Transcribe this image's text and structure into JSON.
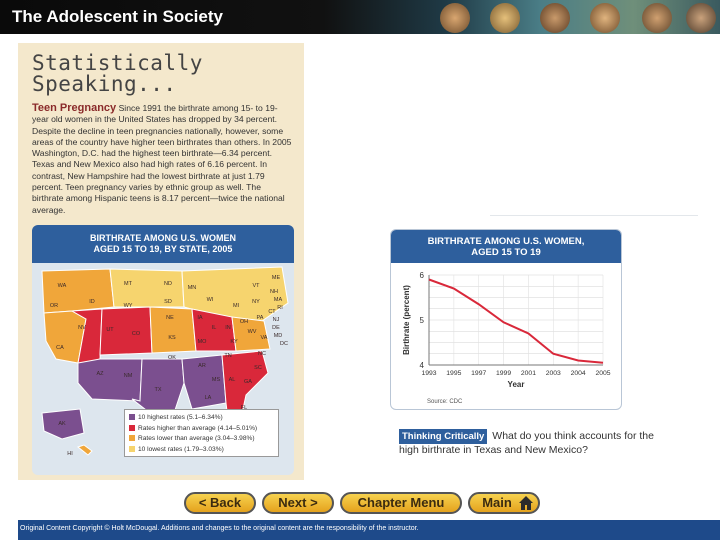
{
  "window": {
    "title": "The Adolescent in Society"
  },
  "left_page": {
    "heading_line1": "Statistically",
    "heading_line2": "Speaking...",
    "teen_pregnancy_title": "Teen Pregnancy",
    "teen_pregnancy_body": "Since 1991 the birthrate among 15- to 19-year old women in the United States has dropped by 34 percent. Despite the decline in teen pregnancies nationally, however, some areas of the country have higher teen birthrates than others. In 2005 Washington, D.C. had the highest teen birthrate—6.34 percent. Texas and New Mexico also had high rates of 6.16 percent. In contrast, New Hampshire had the lowest birthrate at just 1.79 percent. Teen pregnancy varies by ethnic group as well. The birthrate among Hispanic teens is 8.17 percent—twice the national average.",
    "map_title_line1": "BIRTHRATE AMONG U.S. WOMEN",
    "map_title_line2": "AGED 15 TO 19, BY STATE, 2005",
    "legend": [
      {
        "label": "10 highest rates (5.1–6.34%)",
        "color": "#7b4f8f"
      },
      {
        "label": "Rates higher than average (4.14–5.01%)",
        "color": "#d9283a"
      },
      {
        "label": "Rates lower than average (3.04–3.98%)",
        "color": "#f0a63a"
      },
      {
        "label": "10 lowest rates (1.79–3.03%)",
        "color": "#f6d46e"
      }
    ],
    "state_labels": [
      "WA",
      "MT",
      "ND",
      "MN",
      "ME",
      "OR",
      "ID",
      "SD",
      "WI",
      "MI",
      "VT",
      "NH",
      "NY",
      "MA",
      "WY",
      "IA",
      "RI",
      "CT",
      "NV",
      "NE",
      "IL",
      "IN",
      "OH",
      "PA",
      "NJ",
      "DE",
      "UT",
      "CO",
      "KS",
      "MO",
      "KY",
      "WV",
      "VA",
      "MD",
      "DC",
      "CA",
      "TN",
      "NC",
      "AZ",
      "NM",
      "OK",
      "AR",
      "SC",
      "MS",
      "AL",
      "GA",
      "TX",
      "LA",
      "FL",
      "AK",
      "HI"
    ]
  },
  "chart": {
    "title_line1": "BIRTHRATE AMONG U.S. WOMEN,",
    "title_line2": "AGED 15 TO 19",
    "source": "Source: CDC"
  },
  "chart_data": {
    "type": "line",
    "title": "BIRTHRATE AMONG U.S. WOMEN, AGED 15 TO 19",
    "xlabel": "Year",
    "ylabel": "Birthrate (percent)",
    "x": [
      "1993",
      "1995",
      "1997",
      "1999",
      "2001",
      "2003",
      "2004",
      "2005"
    ],
    "series": [
      {
        "values": [
          5.9,
          5.7,
          5.35,
          4.95,
          4.7,
          4.25,
          4.1,
          4.05
        ]
      }
    ],
    "yticks": [
      "4",
      "5",
      "6"
    ],
    "ylim": [
      4,
      6
    ]
  },
  "thinking_critically": {
    "badge": "Thinking Critically",
    "question": "What do you think accounts for the high birthrate in Texas and New Mexico?"
  },
  "nav": {
    "back": "< Back",
    "next": "Next >",
    "chapter_menu": "Chapter Menu",
    "main": "Main"
  },
  "footer": {
    "copyright": "Original Content Copyright © Holt McDougal. Additions and changes to the original content are the responsibility of the instructor."
  },
  "colors": {
    "header_bg": "#0a0a0a",
    "panel_blue": "#2e5f9d",
    "page_tan": "#f4e8cc",
    "line_red": "#d9283a",
    "nav_gold": "#f0b32a",
    "footer_blue": "#1e4a8a"
  }
}
